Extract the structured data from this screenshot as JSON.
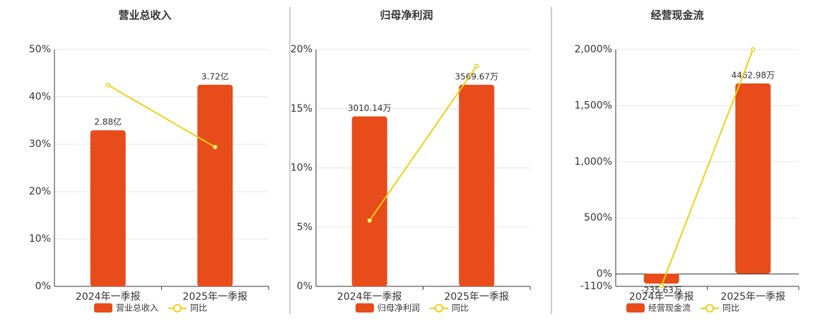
{
  "chart_data": [
    {
      "type": "combo",
      "title": "营业总收入",
      "categories": [
        "2024年一季报",
        "2025年一季报"
      ],
      "series": [
        {
          "name": "营业总收入",
          "type": "bar",
          "color": "#e84c1b",
          "axis": "y2",
          "values": [
            2.88,
            3.72
          ],
          "value_labels": [
            "2.88亿",
            "3.72亿"
          ]
        },
        {
          "name": "同比",
          "type": "line",
          "color": "#f2d111",
          "values": [
            42.5,
            29.4
          ]
        }
      ],
      "ylim": [
        0,
        50
      ],
      "yticks": [
        {
          "value": 0,
          "label": "0%"
        },
        {
          "value": 10,
          "label": "10%"
        },
        {
          "value": 20,
          "label": "20%"
        },
        {
          "value": 30,
          "label": "30%"
        },
        {
          "value": 40,
          "label": "40%"
        },
        {
          "value": 50,
          "label": "50%"
        }
      ],
      "y2lim": [
        0,
        4.37
      ],
      "grid": true
    },
    {
      "type": "combo",
      "title": "归母净利润",
      "categories": [
        "2024年一季报",
        "2025年一季报"
      ],
      "series": [
        {
          "name": "归母净利润",
          "type": "bar",
          "color": "#e84c1b",
          "axis": "y2",
          "values": [
            3010.14,
            3569.67
          ],
          "value_labels": [
            "3010.14万",
            "3569.67万"
          ]
        },
        {
          "name": "同比",
          "type": "line",
          "color": "#f2d111",
          "values": [
            5.55,
            18.6
          ]
        }
      ],
      "ylim": [
        0,
        20
      ],
      "yticks": [
        {
          "value": 0,
          "label": "0%"
        },
        {
          "value": 5,
          "label": "5%"
        },
        {
          "value": 10,
          "label": "10%"
        },
        {
          "value": 15,
          "label": "15%"
        },
        {
          "value": 20,
          "label": "20%"
        }
      ],
      "y2lim": [
        0,
        4195
      ],
      "grid": true
    },
    {
      "type": "combo",
      "title": "经营现金流",
      "categories": [
        "2024年一季报",
        "2025年一季报"
      ],
      "series": [
        {
          "name": "经营现金流",
          "type": "bar",
          "color": "#e84c1b",
          "axis": "y2",
          "values": [
            -235.63,
            4462.98
          ],
          "value_labels": [
            "-235.63万",
            "4462.98万"
          ]
        },
        {
          "name": "同比",
          "type": "line",
          "color": "#f2d111",
          "values": [
            -105,
            2000
          ]
        }
      ],
      "ylim": [
        -110,
        2000
      ],
      "yticks": [
        {
          "value": -110,
          "label": "-110%"
        },
        {
          "value": 0,
          "label": "0%"
        },
        {
          "value": 500,
          "label": "500%"
        },
        {
          "value": 1000,
          "label": "1,000%"
        },
        {
          "value": 1500,
          "label": "1,500%"
        },
        {
          "value": 2000,
          "label": "2,000%"
        }
      ],
      "y2lim": [
        -299,
        5259
      ],
      "grid": true
    }
  ]
}
